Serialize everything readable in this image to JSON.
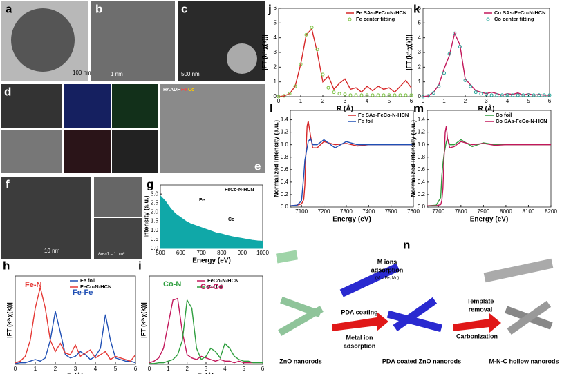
{
  "panels": {
    "letters": [
      "a",
      "b",
      "c",
      "d",
      "e",
      "f",
      "g",
      "h",
      "i",
      "j",
      "k",
      "l",
      "m",
      "n"
    ],
    "scalebars": [
      "100 nm",
      "1 nm",
      "500 nm",
      "10 nm"
    ],
    "area_label": "Area1 = 1 nm²",
    "haadf": [
      "HAADF",
      "Fe",
      "Co"
    ],
    "n": {
      "m_ions": "M ions",
      "adsorption": "adsorption",
      "m_note": "(M = Fe, Mn)",
      "pda": "PDA coating",
      "metal": "Metal ion",
      "metal2": "adsorption",
      "template": "Template",
      "removal": "removal",
      "carbon": "Carbonization",
      "zno": "ZnO nanorods",
      "pda_zno": "PDA coated ZnO nanorods",
      "mnc": "M-N-C hollow nanorods"
    }
  },
  "chart_data": [
    {
      "type": "line",
      "xlabel": "R (Å)",
      "ylabel": "|FT (k³·χ(k))|",
      "x": [
        0,
        0.25,
        0.5,
        0.75,
        1,
        1.25,
        1.5,
        1.75,
        2,
        2.25,
        2.5,
        2.75,
        3,
        3.25,
        3.5,
        3.75,
        4,
        4.25,
        4.5,
        4.75,
        5,
        5.25,
        5.5,
        5.75,
        6
      ],
      "xlim": [
        0,
        6
      ],
      "xticks": [
        0,
        1,
        2,
        3,
        4,
        5,
        6
      ],
      "ylim": [
        0,
        6
      ],
      "yticks": [
        0,
        1,
        2,
        3,
        4,
        5,
        6
      ],
      "legend": "upper right",
      "series": [
        {
          "name": "Fe SAs-FeCo-N-HCN",
          "color": "#d62728",
          "values": [
            0,
            0.05,
            0.2,
            0.7,
            2.2,
            4.2,
            4.6,
            3.0,
            1.0,
            1.4,
            0.5,
            0.9,
            1.2,
            0.5,
            0.6,
            0.3,
            0.7,
            0.4,
            0.7,
            0.5,
            0.6,
            0.3,
            0.7,
            1.1,
            0.6
          ]
        },
        {
          "name": "Fe center fitting",
          "color": "#7cc243",
          "marker": "circle",
          "values": [
            0,
            0.05,
            0.2,
            0.7,
            2.2,
            4.2,
            4.7,
            3.2,
            1.5,
            0.6,
            0.3,
            0.2,
            0.15,
            0.1,
            0.1,
            0.1,
            0.1,
            0.1,
            0.1,
            0.1,
            0.1,
            0.1,
            0.1,
            0.1,
            0.1
          ]
        }
      ]
    },
    {
      "type": "line",
      "xlabel": "R (Å)",
      "ylabel": "|FT (k³·χ(k))|",
      "x": [
        0,
        0.25,
        0.5,
        0.75,
        1,
        1.25,
        1.5,
        1.75,
        2,
        2.25,
        2.5,
        2.75,
        3,
        3.25,
        3.5,
        3.75,
        4,
        4.25,
        4.5,
        4.75,
        5,
        5.25,
        5.5,
        5.75,
        6
      ],
      "xlim": [
        0,
        6
      ],
      "xticks": [
        0,
        1,
        2,
        3,
        4,
        5,
        6
      ],
      "ylim": [
        0,
        6
      ],
      "yticks": [
        0,
        1,
        2,
        3,
        4,
        5,
        6
      ],
      "legend": "upper right",
      "series": [
        {
          "name": "Co SAs-FeCo-N-HCN",
          "color": "#c2185b",
          "values": [
            0,
            0.05,
            0.3,
            0.8,
            1.9,
            2.8,
            4.3,
            3.5,
            1.2,
            0.8,
            0.4,
            0.3,
            0.2,
            0.3,
            0.2,
            0.1,
            0.2,
            0.15,
            0.25,
            0.1,
            0.2,
            0.1,
            0.15,
            0.1,
            0.1
          ]
        },
        {
          "name": "Co center fitting",
          "color": "#26a69a",
          "marker": "circle",
          "values": [
            0,
            0.05,
            0.25,
            0.7,
            1.6,
            2.9,
            4.3,
            3.4,
            1.1,
            0.7,
            0.3,
            0.2,
            0.15,
            0.1,
            0.1,
            0.1,
            0.1,
            0.1,
            0.1,
            0.1,
            0.1,
            0.1,
            0.1,
            0.1,
            0.1
          ]
        }
      ]
    },
    {
      "type": "line",
      "xlabel": "Energy (eV)",
      "ylabel": "Normalized Intensity (a.u.)",
      "x": [
        7050,
        7080,
        7100,
        7110,
        7115,
        7120,
        7125,
        7130,
        7140,
        7150,
        7170,
        7200,
        7250,
        7300,
        7350,
        7400,
        7500,
        7600
      ],
      "xlim": [
        7050,
        7600
      ],
      "xticks": [
        7100,
        7200,
        7300,
        7400,
        7500,
        7600
      ],
      "ylim": [
        0,
        1.55
      ],
      "yticks": [
        {
          "value": 0,
          "label": "0.0"
        },
        0.2,
        0.4,
        0.6,
        0.8,
        {
          "value": 1,
          "label": "1.0"
        },
        1.2,
        1.4
      ],
      "legend": "upper right",
      "series": [
        {
          "name": "Fe SAs-FeCo-N-HCN",
          "color": "#d62728",
          "values": [
            0.02,
            0.03,
            0.05,
            0.12,
            0.35,
            0.9,
            1.3,
            1.38,
            1.15,
            0.95,
            0.95,
            1.05,
            1.0,
            1.02,
            0.98,
            1.0,
            1.0,
            1.0
          ]
        },
        {
          "name": "Fe foil",
          "color": "#1f4fb4",
          "values": [
            0.02,
            0.03,
            0.1,
            0.5,
            0.75,
            0.85,
            0.95,
            1.05,
            1.1,
            1.0,
            1.0,
            1.08,
            0.95,
            1.05,
            1.0,
            1.0,
            1.0,
            1.0
          ]
        }
      ]
    },
    {
      "type": "line",
      "xlabel": "Energy (eV)",
      "ylabel": "Normalized Intensity (a.u.)",
      "x": [
        7650,
        7690,
        7710,
        7715,
        7720,
        7725,
        7730,
        7735,
        7740,
        7750,
        7770,
        7800,
        7850,
        7900,
        7950,
        8000,
        8100,
        8200
      ],
      "xlim": [
        7650,
        8200
      ],
      "xticks": [
        7700,
        7800,
        7900,
        8000,
        8100,
        8200
      ],
      "ylim": [
        0,
        1.55
      ],
      "yticks": [
        {
          "value": 0,
          "label": "0.0"
        },
        0.2,
        0.4,
        0.6,
        0.8,
        {
          "value": 1,
          "label": "1.0"
        },
        1.2,
        1.4
      ],
      "legend": "upper right",
      "series": [
        {
          "name": "Co foil",
          "color": "#2e9e3e",
          "values": [
            0.02,
            0.03,
            0.15,
            0.5,
            0.7,
            0.85,
            0.95,
            1.05,
            1.1,
            1.0,
            1.0,
            1.08,
            0.97,
            1.03,
            1.0,
            1.0,
            1.0,
            1.0
          ]
        },
        {
          "name": "Co SAs-FeCo-N-HCN",
          "color": "#c2185b",
          "values": [
            0.02,
            0.02,
            0.04,
            0.1,
            0.3,
            0.8,
            1.2,
            1.3,
            1.1,
            0.95,
            0.97,
            1.05,
            1.0,
            1.02,
            0.99,
            1.0,
            1.0,
            1.0
          ]
        }
      ]
    },
    {
      "type": "area",
      "xlabel": "Energy (eV)",
      "ylabel": "Intensity (a.u.)",
      "annotations": [
        "FeCo-N-HCN",
        "Fe",
        "Co"
      ],
      "x": [
        500,
        525,
        550,
        575,
        600,
        625,
        650,
        675,
        700,
        725,
        750,
        775,
        800,
        825,
        850,
        875,
        900,
        925,
        950,
        975,
        1000
      ],
      "xlim": [
        500,
        1000
      ],
      "xticks": [
        500,
        600,
        700,
        800,
        900,
        1000
      ],
      "ylim": [
        0,
        3.5
      ],
      "yticks": [
        {
          "value": 0,
          "label": "0.0"
        },
        0.5,
        {
          "value": 1,
          "label": "1.0"
        },
        1.5,
        {
          "value": 2,
          "label": "2.0"
        },
        2.5,
        {
          "value": 3,
          "label": "3.0"
        }
      ],
      "series": [
        {
          "color": "#10a8a8",
          "values": [
            2.9,
            2.6,
            2.2,
            1.9,
            1.7,
            1.5,
            1.35,
            1.25,
            1.15,
            1.05,
            0.95,
            0.85,
            0.8,
            0.72,
            0.65,
            0.6,
            0.55,
            0.5,
            0.45,
            0.42,
            0.4
          ]
        }
      ]
    },
    {
      "type": "line",
      "xlabel": "R (Å)",
      "ylabel": "|FT (k³·χ(k))|",
      "annotations": [
        "Fe-N",
        "Fe-Fe"
      ],
      "x": [
        0,
        0.25,
        0.5,
        0.75,
        1,
        1.25,
        1.5,
        1.75,
        2,
        2.25,
        2.5,
        2.75,
        3,
        3.25,
        3.5,
        3.75,
        4,
        4.25,
        4.5,
        4.75,
        5,
        5.25,
        5.5,
        5.75,
        6
      ],
      "xlim": [
        0,
        6
      ],
      "xticks": [
        0,
        1,
        2,
        3,
        4,
        5,
        6
      ],
      "ylim": [
        0,
        5.5
      ],
      "legend": "upper right",
      "series": [
        {
          "name": "Fe foil",
          "color": "#1f4fb4",
          "values": [
            0.05,
            0.1,
            0.1,
            0.2,
            0.3,
            0.2,
            0.4,
            1.5,
            3.3,
            2.0,
            0.6,
            0.4,
            0.5,
            0.8,
            0.6,
            0.3,
            0.5,
            1.0,
            3.1,
            1.5,
            0.4,
            0.3,
            0.2,
            0.2,
            0.1
          ]
        },
        {
          "name": "FeCo-N-HCN",
          "color": "#e53935",
          "values": [
            0.1,
            0.2,
            0.5,
            1.5,
            3.5,
            4.8,
            3.5,
            1.5,
            0.8,
            1.3,
            0.7,
            0.6,
            1.2,
            0.5,
            0.7,
            0.9,
            0.4,
            0.6,
            0.8,
            0.3,
            0.5,
            0.4,
            0.3,
            0.2,
            0.6
          ]
        }
      ]
    },
    {
      "type": "line",
      "xlabel": "R (Å)",
      "ylabel": "|FT (k³·χ(k))|",
      "annotations": [
        "Co-N",
        "Co-Co"
      ],
      "x": [
        0,
        0.25,
        0.5,
        0.75,
        1,
        1.25,
        1.5,
        1.75,
        2,
        2.25,
        2.5,
        2.75,
        3,
        3.25,
        3.5,
        3.75,
        4,
        4.25,
        4.5,
        4.75,
        5,
        5.25,
        5.5,
        5.75,
        6
      ],
      "xlim": [
        0,
        6
      ],
      "xticks": [
        0,
        1,
        2,
        3,
        4,
        5,
        6
      ],
      "ylim": [
        0,
        5.5
      ],
      "legend": "upper right",
      "series": [
        {
          "name": "FeCo-N-HCN",
          "color": "#c2185b",
          "values": [
            0.1,
            0.2,
            0.4,
            1.0,
            2.5,
            4.0,
            4.1,
            2.0,
            0.6,
            0.4,
            0.3,
            0.5,
            0.4,
            0.3,
            0.2,
            0.3,
            0.2,
            0.2,
            0.1,
            0.2,
            0.1,
            0.1,
            0.1,
            0.1,
            0.1
          ]
        },
        {
          "name": "Co foil",
          "color": "#2e9e3e",
          "values": [
            0.05,
            0.05,
            0.1,
            0.1,
            0.2,
            0.3,
            0.6,
            1.5,
            4.0,
            3.5,
            1.0,
            0.3,
            0.5,
            1.0,
            0.8,
            0.4,
            1.3,
            1.0,
            0.5,
            0.3,
            0.2,
            0.2,
            0.1,
            0.1,
            0.1
          ]
        }
      ]
    }
  ]
}
